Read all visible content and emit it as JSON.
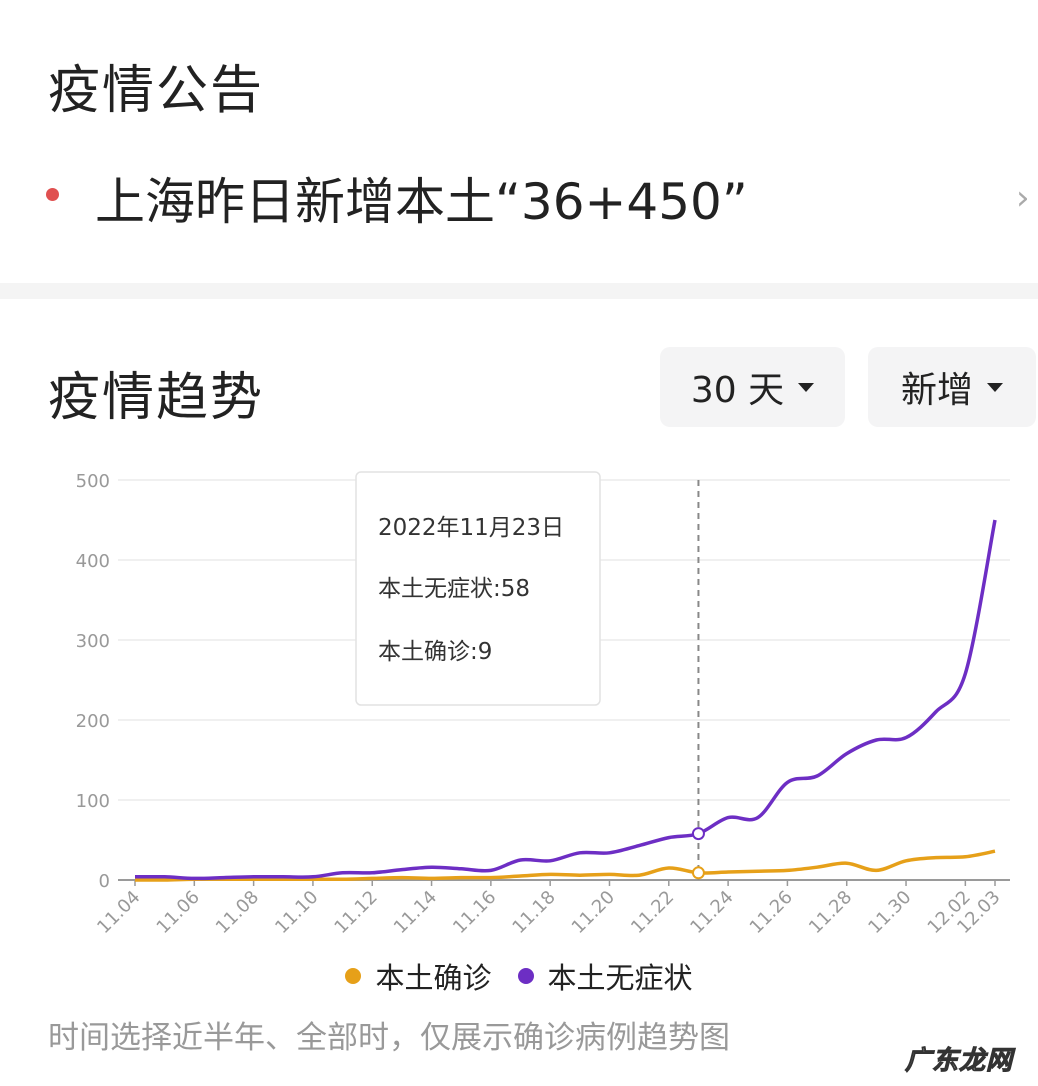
{
  "notice": {
    "title": "疫情公告",
    "headline": "上海昨日新增本土“36+450”"
  },
  "trend": {
    "title": "疫情趋势",
    "range_label": "30 天",
    "metric_label": "新增"
  },
  "tooltip": {
    "date": "2022年11月23日",
    "line_asym": "本土无症状:58",
    "line_conf": "本土确诊:9"
  },
  "footnote": "时间选择近半年、全部时，仅展示确诊病例趋势图",
  "watermark": "广东龙网",
  "colors": {
    "confirmed": "#E6A019",
    "asymptomatic": "#6D2EC4",
    "accent_dot": "#E05050"
  },
  "chart_data": {
    "type": "line",
    "x": [
      "11.04",
      "11.05",
      "11.06",
      "11.07",
      "11.08",
      "11.09",
      "11.10",
      "11.11",
      "11.12",
      "11.13",
      "11.14",
      "11.15",
      "11.16",
      "11.17",
      "11.18",
      "11.19",
      "11.20",
      "11.21",
      "11.22",
      "11.23",
      "11.24",
      "11.25",
      "11.26",
      "11.27",
      "11.28",
      "11.29",
      "11.30",
      "12.01",
      "12.02",
      "12.03"
    ],
    "tick_labels": [
      "11.04",
      "11.06",
      "11.08",
      "11.10",
      "11.12",
      "11.14",
      "11.16",
      "11.18",
      "11.20",
      "11.22",
      "11.24",
      "11.26",
      "11.28",
      "11.30",
      "12.02",
      "12.03"
    ],
    "series": [
      {
        "name": "本土确诊",
        "values": [
          0,
          0,
          1,
          1,
          1,
          1,
          1,
          1,
          2,
          3,
          2,
          3,
          3,
          5,
          7,
          6,
          7,
          6,
          15,
          9,
          10,
          11,
          12,
          16,
          21,
          12,
          24,
          28,
          29,
          36
        ]
      },
      {
        "name": "本土无症状",
        "values": [
          4,
          4,
          2,
          3,
          4,
          4,
          4,
          9,
          9,
          13,
          16,
          14,
          12,
          25,
          24,
          34,
          34,
          43,
          53,
          58,
          78,
          78,
          122,
          130,
          158,
          175,
          178,
          210,
          258,
          450
        ]
      }
    ],
    "ylim": [
      0,
      500
    ],
    "yticks": [
      0,
      100,
      200,
      300,
      400,
      500
    ],
    "highlight_x": "11.23",
    "grid": true,
    "legend": "bottom"
  }
}
